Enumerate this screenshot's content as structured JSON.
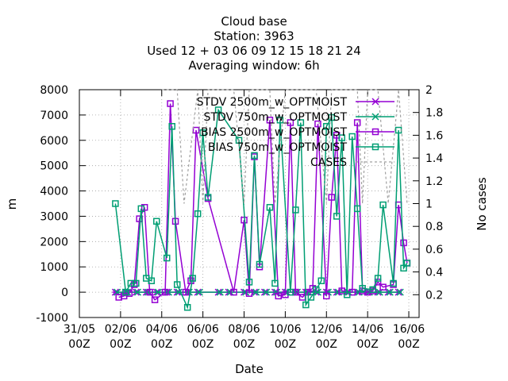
{
  "chart_data": {
    "type": "line",
    "title_lines": [
      "Cloud base",
      "Station:      3963",
      "Used  12 + 03 06 09 12 15 18 21 24",
      "Averaging window:  6h"
    ],
    "xlabel": "Date",
    "ylabel": "m",
    "y2label": "No cases",
    "xlim": [
      "31/05 00Z",
      "16/06 12Z"
    ],
    "ylim": [
      -1000,
      8000
    ],
    "y2lim": [
      0,
      2
    ],
    "x_ticks": [
      "31/05 00Z",
      "02/06 00Z",
      "04/06 00Z",
      "06/06 00Z",
      "08/06 00Z",
      "10/06 00Z",
      "12/06 00Z",
      "14/06 00Z",
      "16/06 00Z"
    ],
    "x_tick_labels": [
      [
        "31/05",
        "00Z"
      ],
      [
        "02/06",
        "00Z"
      ],
      [
        "04/06",
        "00Z"
      ],
      [
        "06/06",
        "00Z"
      ],
      [
        "08/06",
        "00Z"
      ],
      [
        "10/06",
        "00Z"
      ],
      [
        "12/06",
        "00Z"
      ],
      [
        "14/06",
        "00Z"
      ],
      [
        "16/06",
        "00Z"
      ]
    ],
    "y_ticks": [
      "-1000",
      "0",
      "1000",
      "2000",
      "3000",
      "4000",
      "5000",
      "6000",
      "7000",
      "8000"
    ],
    "y2_ticks": [
      "0.2",
      "0.4",
      "0.6",
      "0.8",
      "1",
      "1.2",
      "1.4",
      "1.6",
      "1.8",
      "2"
    ],
    "grid": true,
    "legend_position": "top-right",
    "series": [
      {
        "name": "STDV 2500m_w_OPTMOIST",
        "color": "#9400d3",
        "marker": "asterisk",
        "points": [
          [
            "01/06 18Z",
            0
          ],
          [
            "02/06 06Z",
            0
          ],
          [
            "02/06 18Z",
            0
          ],
          [
            "03/06 06Z",
            0
          ],
          [
            "03/06 18Z",
            0
          ],
          [
            "04/06 06Z",
            0
          ],
          [
            "04/06 18Z",
            0
          ],
          [
            "05/06 06Z",
            0
          ],
          [
            "05/06 18Z",
            0
          ],
          [
            "06/06 18Z",
            0
          ],
          [
            "07/06 06Z",
            0
          ],
          [
            "08/06 00Z",
            0
          ],
          [
            "08/06 12Z",
            0
          ],
          [
            "09/06 00Z",
            0
          ],
          [
            "09/06 12Z",
            0
          ],
          [
            "10/06 00Z",
            0
          ],
          [
            "10/06 12Z",
            0
          ],
          [
            "11/06 00Z",
            0
          ],
          [
            "11/06 12Z",
            0
          ],
          [
            "12/06 00Z",
            0
          ],
          [
            "12/06 12Z",
            0
          ],
          [
            "13/06 00Z",
            0
          ],
          [
            "13/06 12Z",
            0
          ],
          [
            "14/06 00Z",
            0
          ],
          [
            "14/06 12Z",
            0
          ],
          [
            "15/06 00Z",
            0
          ],
          [
            "15/06 12Z",
            0
          ]
        ]
      },
      {
        "name": "STDV 750m_w_OPTMOIST",
        "color": "#009e73",
        "marker": "x",
        "points": [
          [
            "01/06 20Z",
            0
          ],
          [
            "02/06 08Z",
            0
          ],
          [
            "02/06 20Z",
            0
          ],
          [
            "03/06 08Z",
            0
          ],
          [
            "03/06 20Z",
            0
          ],
          [
            "04/06 08Z",
            0
          ],
          [
            "04/06 20Z",
            0
          ],
          [
            "05/06 08Z",
            0
          ],
          [
            "05/06 20Z",
            0
          ],
          [
            "06/06 20Z",
            0
          ],
          [
            "07/06 08Z",
            0
          ],
          [
            "08/06 02Z",
            0
          ],
          [
            "08/06 14Z",
            0
          ],
          [
            "09/06 02Z",
            0
          ],
          [
            "09/06 14Z",
            0
          ],
          [
            "10/06 02Z",
            0
          ],
          [
            "10/06 14Z",
            0
          ],
          [
            "11/06 02Z",
            0
          ],
          [
            "11/06 14Z",
            0
          ],
          [
            "12/06 02Z",
            0
          ],
          [
            "12/06 14Z",
            0
          ],
          [
            "13/06 02Z",
            0
          ],
          [
            "13/06 14Z",
            0
          ],
          [
            "14/06 02Z",
            0
          ],
          [
            "14/06 14Z",
            0
          ],
          [
            "15/06 02Z",
            0
          ],
          [
            "15/06 14Z",
            0
          ]
        ]
      },
      {
        "name": "BIAS 2500m_w_OPTMOIST",
        "color": "#9400d3",
        "marker": "square",
        "points": [
          [
            "01/06 22Z",
            -200
          ],
          [
            "02/06 04Z",
            -150
          ],
          [
            "02/06 10Z",
            -50
          ],
          [
            "02/06 16Z",
            300
          ],
          [
            "02/06 22Z",
            2900
          ],
          [
            "03/06 04Z",
            3350
          ],
          [
            "03/06 10Z",
            0
          ],
          [
            "03/06 16Z",
            -300
          ],
          [
            "04/06 04Z",
            0
          ],
          [
            "04/06 10Z",
            7450
          ],
          [
            "04/06 16Z",
            2800
          ],
          [
            "05/06 04Z",
            0
          ],
          [
            "05/06 10Z",
            450
          ],
          [
            "05/06 16Z",
            6400
          ],
          [
            "06/06 06Z",
            3700
          ],
          [
            "07/06 12Z",
            0
          ],
          [
            "08/06 00Z",
            2850
          ],
          [
            "08/06 06Z",
            -50
          ],
          [
            "08/06 12Z",
            5350
          ],
          [
            "08/06 18Z",
            1000
          ],
          [
            "09/06 06Z",
            6800
          ],
          [
            "09/06 16Z",
            -150
          ],
          [
            "10/06 00Z",
            -100
          ],
          [
            "10/06 06Z",
            6700
          ],
          [
            "10/06 12Z",
            0
          ],
          [
            "10/06 20Z",
            -200
          ],
          [
            "11/06 02Z",
            0
          ],
          [
            "11/06 08Z",
            150
          ],
          [
            "11/06 14Z",
            6650
          ],
          [
            "12/06 00Z",
            -150
          ],
          [
            "12/06 06Z",
            3750
          ],
          [
            "12/06 12Z",
            6200
          ],
          [
            "12/06 18Z",
            50
          ],
          [
            "13/06 06Z",
            0
          ],
          [
            "13/06 12Z",
            6700
          ],
          [
            "13/06 18Z",
            50
          ],
          [
            "14/06 00Z",
            0
          ],
          [
            "14/06 06Z",
            50
          ],
          [
            "14/06 12Z",
            400
          ],
          [
            "14/06 18Z",
            200
          ],
          [
            "15/06 06Z",
            300
          ],
          [
            "15/06 12Z",
            3450
          ],
          [
            "15/06 18Z",
            1950
          ],
          [
            "15/06 22Z",
            1150
          ]
        ]
      },
      {
        "name": "BIAS 750m_w_OPTMOIST",
        "color": "#009e73",
        "marker": "square",
        "points": [
          [
            "01/06 18Z",
            3500
          ],
          [
            "02/06 06Z",
            0
          ],
          [
            "02/06 12Z",
            350
          ],
          [
            "02/06 18Z",
            350
          ],
          [
            "03/06 00Z",
            3300
          ],
          [
            "03/06 06Z",
            550
          ],
          [
            "03/06 12Z",
            450
          ],
          [
            "03/06 18Z",
            2800
          ],
          [
            "04/06 06Z",
            1350
          ],
          [
            "04/06 12Z",
            6550
          ],
          [
            "04/06 18Z",
            300
          ],
          [
            "05/06 06Z",
            -600
          ],
          [
            "05/06 12Z",
            550
          ],
          [
            "05/06 18Z",
            3100
          ],
          [
            "06/06 00Z",
            6300
          ],
          [
            "06/06 06Z",
            3750
          ],
          [
            "06/06 18Z",
            7200
          ],
          [
            "07/06 18Z",
            6000
          ],
          [
            "08/06 06Z",
            400
          ],
          [
            "08/06 12Z",
            5400
          ],
          [
            "08/06 18Z",
            1100
          ],
          [
            "09/06 06Z",
            3350
          ],
          [
            "09/06 12Z",
            350
          ],
          [
            "09/06 18Z",
            6800
          ],
          [
            "10/06 06Z",
            0
          ],
          [
            "10/06 12Z",
            3250
          ],
          [
            "10/06 18Z",
            6700
          ],
          [
            "11/06 00Z",
            -500
          ],
          [
            "11/06 06Z",
            -200
          ],
          [
            "11/06 12Z",
            100
          ],
          [
            "11/06 18Z",
            450
          ],
          [
            "12/06 00Z",
            6550
          ],
          [
            "12/06 06Z",
            6900
          ],
          [
            "12/06 12Z",
            3000
          ],
          [
            "12/06 18Z",
            6100
          ],
          [
            "13/06 00Z",
            -100
          ],
          [
            "13/06 06Z",
            6150
          ],
          [
            "13/06 12Z",
            3300
          ],
          [
            "13/06 18Z",
            150
          ],
          [
            "14/06 06Z",
            100
          ],
          [
            "14/06 12Z",
            550
          ],
          [
            "14/06 18Z",
            3450
          ],
          [
            "15/06 06Z",
            350
          ],
          [
            "15/06 12Z",
            6400
          ],
          [
            "15/06 18Z",
            950
          ],
          [
            "15/06 22Z",
            1150
          ]
        ]
      },
      {
        "name": "CASES",
        "color": "#a0a0a0",
        "axis": "y2",
        "style": "dashed",
        "points": [
          [
            "04/06 00Z",
            2
          ],
          [
            "04/06 18Z",
            2
          ],
          [
            "05/06 02Z",
            1
          ],
          [
            "05/06 18Z",
            2
          ],
          [
            "06/06 00Z",
            1
          ],
          [
            "06/06 06Z",
            2
          ],
          [
            "07/06 12Z",
            2
          ],
          [
            "08/06 00Z",
            1
          ],
          [
            "08/06 06Z",
            2
          ],
          [
            "09/06 06Z",
            2
          ],
          [
            "09/06 12Z",
            1
          ],
          [
            "10/06 00Z",
            2
          ],
          [
            "11/06 12Z",
            2
          ],
          [
            "12/06 00Z",
            1
          ],
          [
            "12/06 06Z",
            2
          ],
          [
            "13/06 12Z",
            2
          ],
          [
            "13/06 18Z",
            1
          ],
          [
            "14/06 00Z",
            2
          ],
          [
            "14/06 12Z",
            2
          ],
          [
            "15/06 00Z",
            1
          ],
          [
            "15/06 12Z",
            2
          ],
          [
            "15/06 22Z",
            1
          ]
        ]
      }
    ]
  }
}
